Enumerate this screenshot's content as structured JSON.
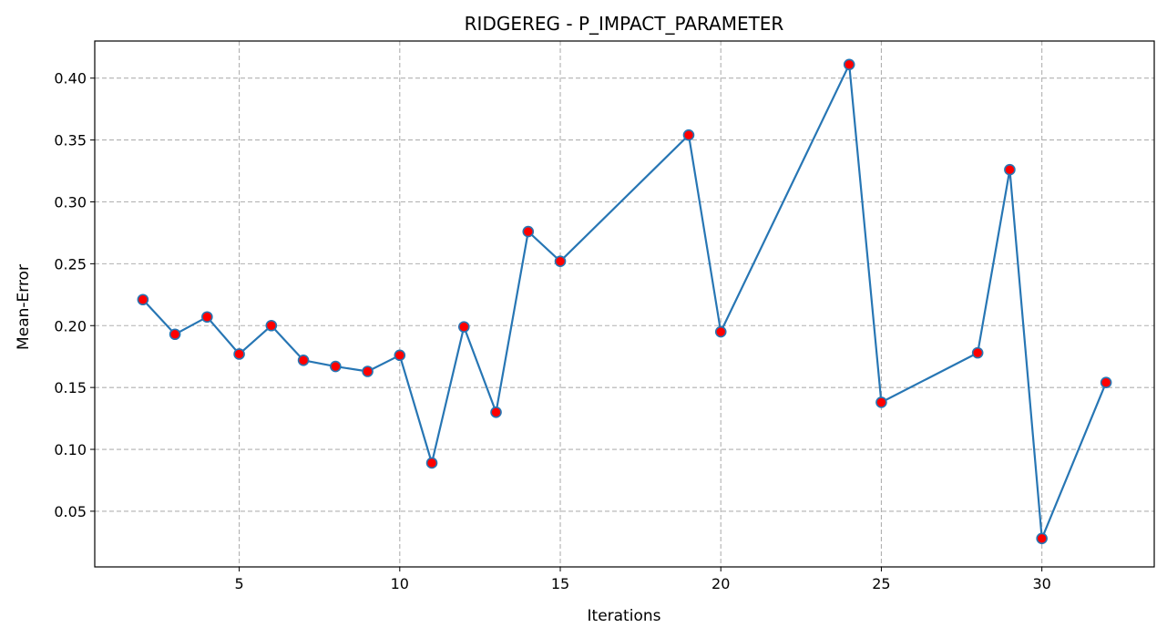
{
  "chart_data": {
    "type": "line",
    "title": "RIDGEREG - P_IMPACT_PARAMETER",
    "xlabel": "Iterations",
    "ylabel": "Mean-Error",
    "xlim": [
      0.5,
      33.5
    ],
    "ylim": [
      0.005,
      0.43
    ],
    "xticks": [
      5,
      10,
      15,
      20,
      25,
      30
    ],
    "yticks": [
      0.05,
      0.1,
      0.15,
      0.2,
      0.25,
      0.3,
      0.35,
      0.4
    ],
    "xtick_labels": [
      "5",
      "10",
      "15",
      "20",
      "25",
      "30"
    ],
    "ytick_labels": [
      "0.05",
      "0.10",
      "0.15",
      "0.20",
      "0.25",
      "0.30",
      "0.35",
      "0.40"
    ],
    "grid": true,
    "grid_style": "dashed",
    "line_color": "#2776b4",
    "marker_color": "#ff0000",
    "series": [
      {
        "x": [
          2,
          3,
          4,
          5,
          6,
          7,
          8,
          9,
          10,
          11,
          12,
          13,
          14,
          15,
          19,
          20,
          24,
          25,
          28,
          29,
          30,
          32
        ],
        "y": [
          0.221,
          0.193,
          0.207,
          0.177,
          0.2,
          0.172,
          0.167,
          0.163,
          0.176,
          0.089,
          0.199,
          0.13,
          0.276,
          0.252,
          0.354,
          0.195,
          0.411,
          0.138,
          0.178,
          0.326,
          0.028,
          0.154
        ]
      }
    ]
  }
}
